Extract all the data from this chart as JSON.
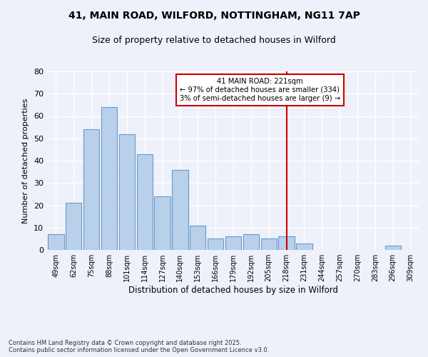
{
  "title_line1": "41, MAIN ROAD, WILFORD, NOTTINGHAM, NG11 7AP",
  "title_line2": "Size of property relative to detached houses in Wilford",
  "xlabel": "Distribution of detached houses by size in Wilford",
  "ylabel": "Number of detached properties",
  "categories": [
    "49sqm",
    "62sqm",
    "75sqm",
    "88sqm",
    "101sqm",
    "114sqm",
    "127sqm",
    "140sqm",
    "153sqm",
    "166sqm",
    "179sqm",
    "192sqm",
    "205sqm",
    "218sqm",
    "231sqm",
    "244sqm",
    "257sqm",
    "270sqm",
    "283sqm",
    "296sqm",
    "309sqm"
  ],
  "values": [
    7,
    21,
    54,
    64,
    52,
    43,
    24,
    36,
    11,
    5,
    6,
    7,
    5,
    6,
    3,
    0,
    0,
    0,
    0,
    2,
    0
  ],
  "bar_color": "#b8d0ea",
  "bar_edge_color": "#6699cc",
  "vline_x": 13,
  "vline_color": "#cc0000",
  "annotation_title": "41 MAIN ROAD: 221sqm",
  "annotation_line1": "← 97% of detached houses are smaller (334)",
  "annotation_line2": "3% of semi-detached houses are larger (9) →",
  "annotation_box_color": "#cc0000",
  "ylim": [
    0,
    80
  ],
  "yticks": [
    0,
    10,
    20,
    30,
    40,
    50,
    60,
    70,
    80
  ],
  "background_color": "#eef1f9",
  "grid_color": "#ffffff",
  "footer": "Contains HM Land Registry data © Crown copyright and database right 2025.\nContains public sector information licensed under the Open Government Licence v3.0."
}
